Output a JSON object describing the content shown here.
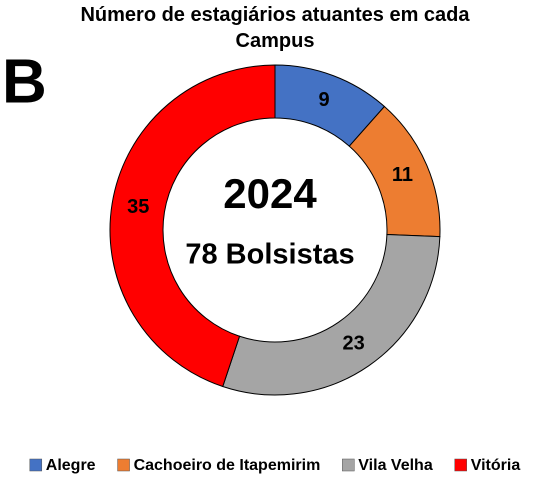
{
  "chart_data": {
    "type": "donut",
    "title": "Número de estagiários atuantes em cada Campus",
    "panel_label": "B",
    "center_title": "2024",
    "center_subtitle": "78 Bolsistas",
    "categories": [
      "Alegre",
      "Cachoeiro de Itapemirim",
      "Vila Velha",
      "Vitória"
    ],
    "values": [
      9,
      11,
      23,
      35
    ],
    "colors": [
      "#4472c4",
      "#ed7d31",
      "#a5a5a5",
      "#ff0000"
    ]
  }
}
